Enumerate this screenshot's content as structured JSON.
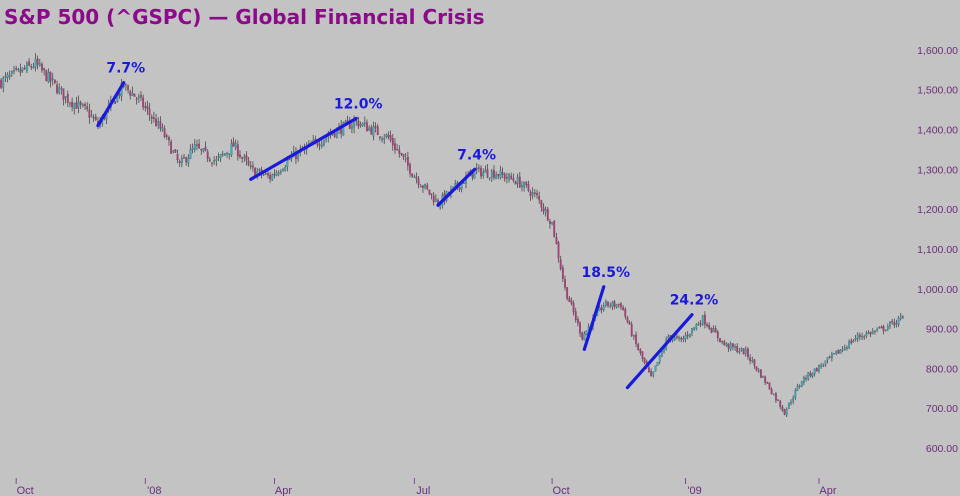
{
  "colors": {
    "background": "#c3c3c3",
    "title": "#8a0a8a",
    "up_candle": "#2fb4c4",
    "down_candle": "#c0327a",
    "wick": "#3a3a3a",
    "rally_line": "#1a1adc",
    "rally_label": "#1a1adc",
    "tick_text": "#6a2f7a"
  },
  "chart_data": {
    "type": "candlestick",
    "title": "S&P 500 (^GSPC) — Global Financial Crisis",
    "ylim": [
      570,
      1640
    ],
    "yticks": [
      600,
      700,
      800,
      900,
      1000,
      1100,
      1200,
      1300,
      1400,
      1500,
      1600
    ],
    "ytick_labels": [
      "600.00",
      "700.00",
      "800.00",
      "900.00",
      "1,000.00",
      "1,100.00",
      "1,200.00",
      "1,300.00",
      "1,400.00",
      "1,500.00",
      "1,600.00"
    ],
    "xlabels": [
      "Oct",
      "'08",
      "Apr",
      "Jul",
      "Oct",
      "'09",
      "Apr"
    ],
    "x_bars_total": 420,
    "x_tick_bars": [
      7,
      67,
      127,
      192,
      256,
      318,
      380
    ],
    "price_path": [
      [
        0,
        1520
      ],
      [
        10,
        1548
      ],
      [
        16,
        1565
      ],
      [
        30,
        1480
      ],
      [
        40,
        1445
      ],
      [
        45,
        1410
      ],
      [
        57,
        1510
      ],
      [
        64,
        1475
      ],
      [
        75,
        1395
      ],
      [
        83,
        1310
      ],
      [
        90,
        1355
      ],
      [
        100,
        1320
      ],
      [
        108,
        1360
      ],
      [
        116,
        1300
      ],
      [
        125,
        1280
      ],
      [
        135,
        1330
      ],
      [
        155,
        1395
      ],
      [
        165,
        1420
      ],
      [
        172,
        1400
      ],
      [
        180,
        1380
      ],
      [
        192,
        1285
      ],
      [
        203,
        1215
      ],
      [
        220,
        1295
      ],
      [
        230,
        1290
      ],
      [
        240,
        1270
      ],
      [
        249,
        1230
      ],
      [
        256,
        1165
      ],
      [
        262,
        1000
      ],
      [
        270,
        880
      ],
      [
        280,
        960
      ],
      [
        288,
        960
      ],
      [
        295,
        860
      ],
      [
        302,
        775
      ],
      [
        310,
        880
      ],
      [
        316,
        870
      ],
      [
        326,
        925
      ],
      [
        336,
        860
      ],
      [
        346,
        840
      ],
      [
        356,
        760
      ],
      [
        364,
        690
      ],
      [
        372,
        770
      ],
      [
        384,
        820
      ],
      [
        398,
        880
      ],
      [
        410,
        900
      ],
      [
        420,
        930
      ]
    ],
    "rallies": [
      {
        "label": "7.7%",
        "start_bar": 45,
        "start_price": 1410,
        "end_bar": 57,
        "end_price": 1518
      },
      {
        "label": "12.0%",
        "start_bar": 116,
        "start_price": 1275,
        "end_bar": 165,
        "end_price": 1428
      },
      {
        "label": "7.4%",
        "start_bar": 203,
        "start_price": 1210,
        "end_bar": 220,
        "end_price": 1300
      },
      {
        "label": "18.5%",
        "start_bar": 271,
        "start_price": 848,
        "end_bar": 280,
        "end_price": 1005
      },
      {
        "label": "24.2%",
        "start_bar": 291,
        "start_price": 752,
        "end_bar": 321,
        "end_price": 935
      }
    ]
  }
}
